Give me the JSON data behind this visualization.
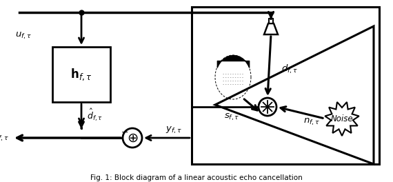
{
  "bg": "#ffffff",
  "lc": "#000000",
  "caption": "Fig. 1: Block diagram of a linear acoustic echo cancellation"
}
